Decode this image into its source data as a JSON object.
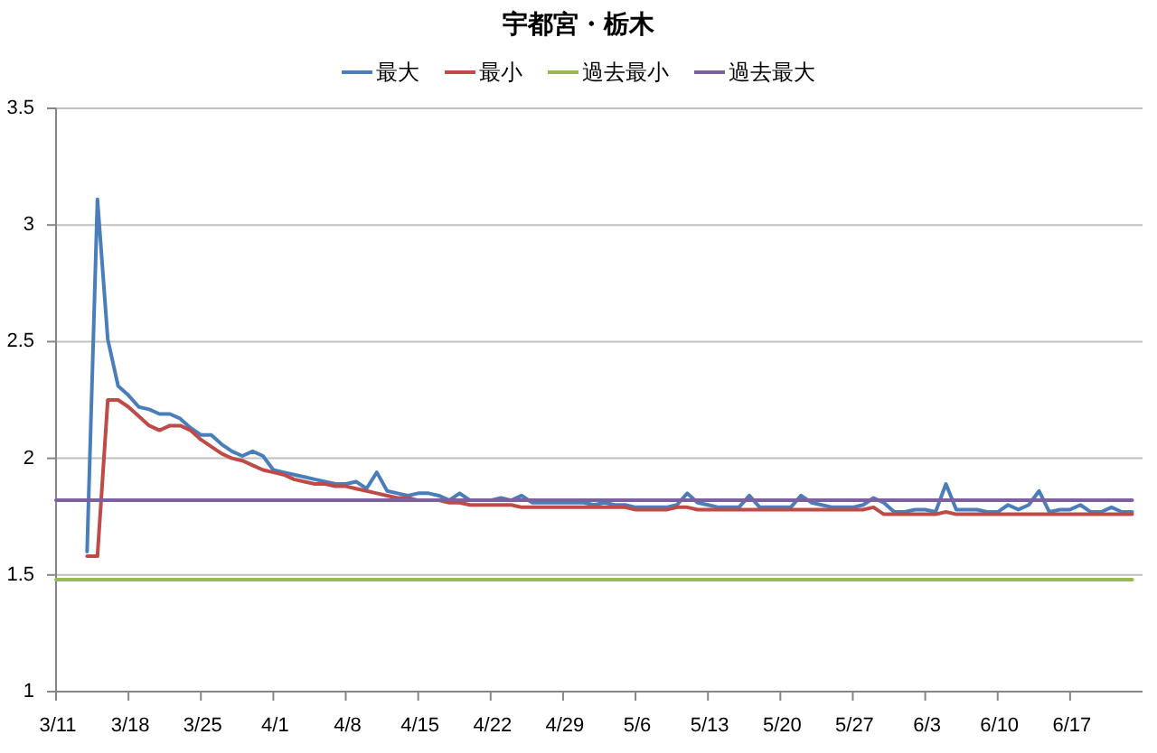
{
  "chart_data": {
    "type": "line",
    "title": "宇都宮・栃木",
    "x": [
      "--03-14",
      "--03-15",
      "--03-16",
      "--03-17",
      "--03-18",
      "--03-19",
      "--03-20",
      "--03-21",
      "--03-22",
      "--03-23",
      "--03-24",
      "--03-25",
      "--03-26",
      "--03-27",
      "--03-28",
      "--03-29",
      "--03-30",
      "--03-31",
      "--04-01",
      "--04-02",
      "--04-03",
      "--04-04",
      "--04-05",
      "--04-06",
      "--04-07",
      "--04-08",
      "--04-09",
      "--04-10",
      "--04-11",
      "--04-12",
      "--04-13",
      "--04-14",
      "--04-15",
      "--04-16",
      "--04-17",
      "--04-18",
      "--04-19",
      "--04-20",
      "--04-21",
      "--04-22",
      "--04-23",
      "--04-24",
      "--04-25",
      "--04-26",
      "--04-27",
      "--04-28",
      "--04-29",
      "--04-30",
      "--05-01",
      "--05-02",
      "--05-03",
      "--05-04",
      "--05-05",
      "--05-06",
      "--05-07",
      "--05-08",
      "--05-09",
      "--05-10",
      "--05-11",
      "--05-12",
      "--05-13",
      "--05-14",
      "--05-15",
      "--05-16",
      "--05-17",
      "--05-18",
      "--05-19",
      "--05-20",
      "--05-21",
      "--05-22",
      "--05-23",
      "--05-24",
      "--05-25",
      "--05-26",
      "--05-27",
      "--05-28",
      "--05-29",
      "--05-30",
      "--05-31",
      "--06-01",
      "--06-02",
      "--06-03",
      "--06-04",
      "--06-05",
      "--06-06",
      "--06-07",
      "--06-08",
      "--06-09",
      "--06-10",
      "--06-11",
      "--06-12",
      "--06-13",
      "--06-14",
      "--06-15",
      "--06-16",
      "--06-17",
      "--06-18",
      "--06-19",
      "--06-20",
      "--06-21",
      "--06-22",
      "--06-23"
    ],
    "series": [
      {
        "name": "最大",
        "color": "#4a7ebb",
        "values": [
          1.6,
          3.11,
          2.51,
          2.31,
          2.27,
          2.22,
          2.21,
          2.19,
          2.19,
          2.17,
          2.13,
          2.1,
          2.1,
          2.06,
          2.03,
          2.01,
          2.03,
          2.01,
          1.95,
          1.94,
          1.93,
          1.92,
          1.91,
          1.9,
          1.89,
          1.89,
          1.9,
          1.87,
          1.94,
          1.86,
          1.85,
          1.84,
          1.85,
          1.85,
          1.84,
          1.82,
          1.85,
          1.82,
          1.82,
          1.82,
          1.83,
          1.82,
          1.84,
          1.81,
          1.81,
          1.81,
          1.81,
          1.81,
          1.81,
          1.8,
          1.81,
          1.8,
          1.8,
          1.79,
          1.79,
          1.79,
          1.79,
          1.8,
          1.85,
          1.81,
          1.8,
          1.79,
          1.79,
          1.79,
          1.84,
          1.79,
          1.79,
          1.79,
          1.79,
          1.84,
          1.81,
          1.8,
          1.79,
          1.79,
          1.79,
          1.8,
          1.83,
          1.81,
          1.77,
          1.77,
          1.78,
          1.78,
          1.77,
          1.89,
          1.78,
          1.78,
          1.78,
          1.77,
          1.77,
          1.8,
          1.78,
          1.8,
          1.86,
          1.77,
          1.78,
          1.78,
          1.8,
          1.77,
          1.77,
          1.79,
          1.77,
          1.77
        ]
      },
      {
        "name": "最小",
        "color": "#be4b48",
        "values": [
          1.58,
          1.58,
          2.25,
          2.25,
          2.22,
          2.18,
          2.14,
          2.12,
          2.14,
          2.14,
          2.12,
          2.08,
          2.05,
          2.02,
          2,
          1.99,
          1.97,
          1.95,
          1.94,
          1.93,
          1.91,
          1.9,
          1.89,
          1.89,
          1.88,
          1.88,
          1.87,
          1.86,
          1.85,
          1.84,
          1.83,
          1.83,
          1.82,
          1.82,
          1.82,
          1.81,
          1.81,
          1.8,
          1.8,
          1.8,
          1.8,
          1.8,
          1.79,
          1.79,
          1.79,
          1.79,
          1.79,
          1.79,
          1.79,
          1.79,
          1.79,
          1.79,
          1.79,
          1.78,
          1.78,
          1.78,
          1.78,
          1.79,
          1.79,
          1.78,
          1.78,
          1.78,
          1.78,
          1.78,
          1.78,
          1.78,
          1.78,
          1.78,
          1.78,
          1.78,
          1.78,
          1.78,
          1.78,
          1.78,
          1.78,
          1.78,
          1.79,
          1.76,
          1.76,
          1.76,
          1.76,
          1.76,
          1.76,
          1.77,
          1.76,
          1.76,
          1.76,
          1.76,
          1.76,
          1.76,
          1.76,
          1.76,
          1.76,
          1.76,
          1.76,
          1.76,
          1.76,
          1.76,
          1.76,
          1.76,
          1.76,
          1.76
        ]
      },
      {
        "name": "過去最小",
        "color": "#98b954",
        "x": [
          "--03-11",
          "--06-23"
        ],
        "values": [
          1.48,
          1.48
        ]
      },
      {
        "name": "過去最大",
        "color": "#7d60a0",
        "x": [
          "--03-11",
          "--06-23"
        ],
        "values": [
          1.82,
          1.82
        ]
      }
    ],
    "xlim": [
      "--03-11",
      "--06-24"
    ],
    "xticks": [
      {
        "value": "--03-11",
        "label": "3/11"
      },
      {
        "value": "--03-18",
        "label": "3/18"
      },
      {
        "value": "--03-25",
        "label": "3/25"
      },
      {
        "value": "--04-01",
        "label": "4/1"
      },
      {
        "value": "--04-08",
        "label": "4/8"
      },
      {
        "value": "--04-15",
        "label": "4/15"
      },
      {
        "value": "--04-22",
        "label": "4/22"
      },
      {
        "value": "--04-29",
        "label": "4/29"
      },
      {
        "value": "--05-06",
        "label": "5/6"
      },
      {
        "value": "--05-13",
        "label": "5/13"
      },
      {
        "value": "--05-20",
        "label": "5/20"
      },
      {
        "value": "--05-27",
        "label": "5/27"
      },
      {
        "value": "--06-03",
        "label": "6/3"
      },
      {
        "value": "--06-10",
        "label": "6/10"
      },
      {
        "value": "--06-17",
        "label": "6/17"
      }
    ],
    "ylim": [
      1,
      3.5
    ],
    "yticks": [
      1,
      1.5,
      2,
      2.5,
      3,
      3.5
    ],
    "grid": "y",
    "legend": "top"
  }
}
